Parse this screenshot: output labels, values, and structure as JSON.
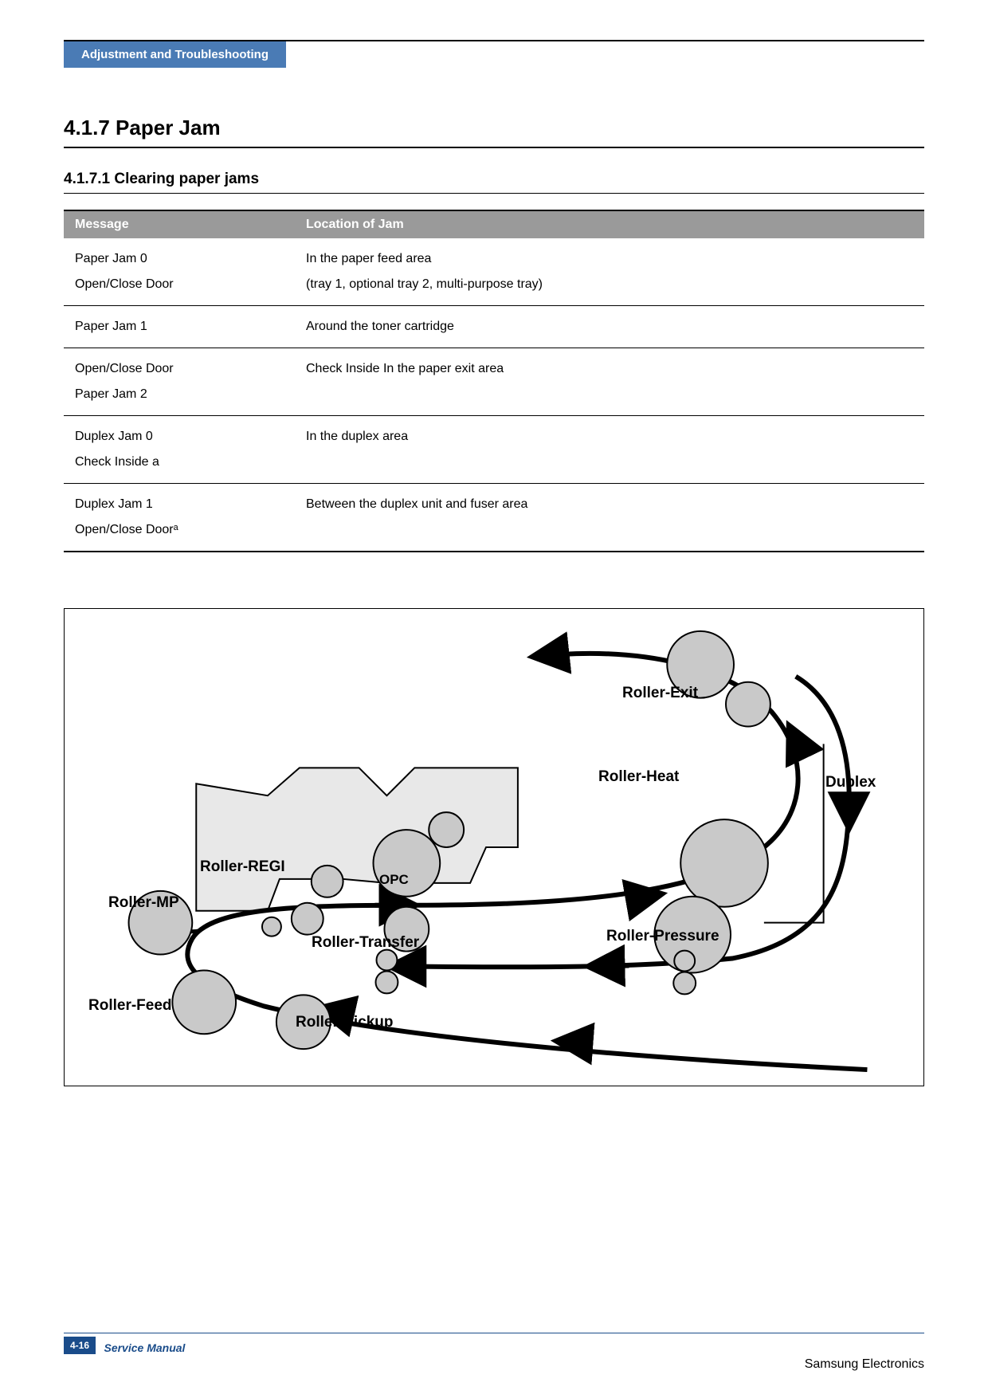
{
  "header": {
    "tab": "Adjustment and Troubleshooting"
  },
  "section": {
    "number_title": "4.1.7  Paper Jam"
  },
  "subsection": {
    "number_title": "4.1.7.1  Clearing paper jams"
  },
  "table": {
    "headers": [
      "Message",
      "Location of Jam"
    ],
    "rows": [
      {
        "msg": "Paper Jam 0\nOpen/Close Door",
        "loc": "In the paper feed area\n(tray 1, optional tray 2, multi-purpose tray)"
      },
      {
        "msg": "Paper Jam 1",
        "loc": "Around the toner cartridge"
      },
      {
        "msg": "Open/Close Door\nPaper Jam 2",
        "loc": "Check Inside In the paper exit area"
      },
      {
        "msg": "Duplex Jam 0\nCheck Inside a",
        "loc": "In the duplex area"
      },
      {
        "msg": "Duplex Jam 1\nOpen/Close Doorᵃ",
        "loc": " Between the duplex unit and fuser area"
      }
    ]
  },
  "diagram": {
    "labels": {
      "exit": "Roller-Exit",
      "heat": "Roller-Heat",
      "duplex": "Duplex",
      "regi": "Roller-REGI",
      "opc": "OPC",
      "mp": "Roller-MP",
      "transfer": "Roller-Transfer",
      "pressure": "Roller-Pressure",
      "feed": "Roller-Feed",
      "pickup": "Roller-Pickup"
    },
    "colors": {
      "roller_fill": "#c9c9c9",
      "shape_fill": "#e8e8e8",
      "stroke": "#000000",
      "path_stroke": "#000000"
    }
  },
  "footer": {
    "page_num": "4-16",
    "manual": "Service Manual",
    "brand": "Samsung Electronics"
  }
}
